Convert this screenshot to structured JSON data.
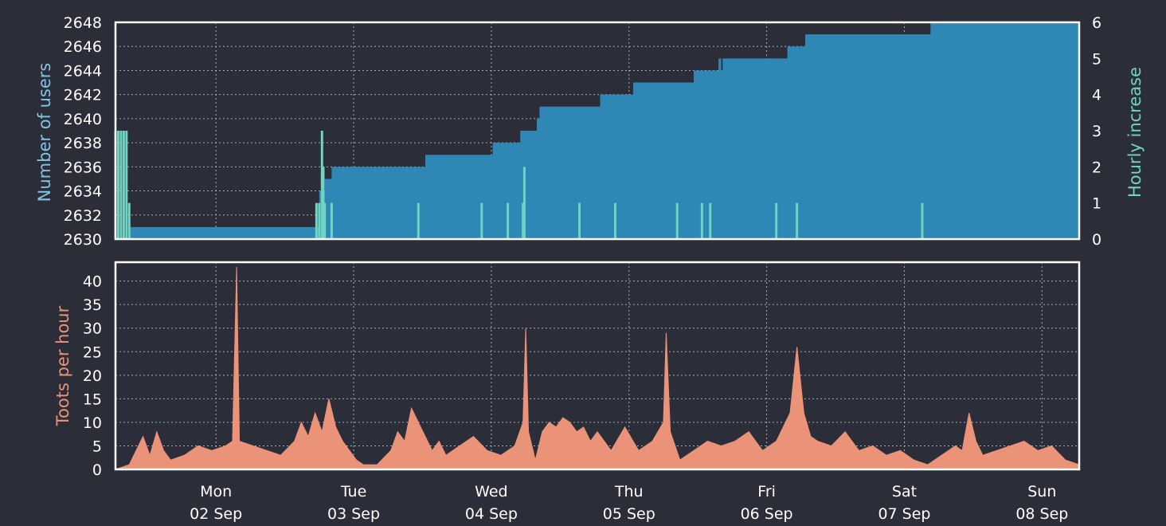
{
  "chart_data": [
    {
      "type": "area",
      "x_axis": "time",
      "xlim": [
        0,
        7.0
      ],
      "left_axis": {
        "label": "Number of users",
        "color": "#82c4e4",
        "ylim": [
          2630,
          2648
        ],
        "ticks": [
          "2630",
          "2632",
          "2634",
          "2636",
          "2638",
          "2640",
          "2642",
          "2644",
          "2646",
          "2648"
        ]
      },
      "right_axis": {
        "label": "Hourly increase",
        "color": "#71d3c2",
        "ylim": [
          0,
          6
        ],
        "ticks": [
          "0",
          "1",
          "2",
          "3",
          "4",
          "5",
          "6"
        ]
      },
      "series": [
        {
          "name": "Number of users",
          "color": "#2e87b4",
          "style": "step-area",
          "points": [
            [
              0,
              2630
            ],
            [
              0.1,
              2631
            ],
            [
              1.45,
              2631
            ],
            [
              1.48,
              2634
            ],
            [
              1.52,
              2635
            ],
            [
              1.57,
              2636
            ],
            [
              2.2,
              2636
            ],
            [
              2.25,
              2637
            ],
            [
              2.7,
              2637
            ],
            [
              2.74,
              2638
            ],
            [
              2.9,
              2638
            ],
            [
              2.94,
              2639
            ],
            [
              3.02,
              2639
            ],
            [
              3.06,
              2640
            ],
            [
              3.08,
              2641
            ],
            [
              3.5,
              2641
            ],
            [
              3.52,
              2642
            ],
            [
              3.72,
              2642
            ],
            [
              3.76,
              2643
            ],
            [
              4.18,
              2643
            ],
            [
              4.2,
              2644
            ],
            [
              4.35,
              2644
            ],
            [
              4.38,
              2645
            ],
            [
              4.39,
              2645
            ],
            [
              4.4,
              2644
            ],
            [
              4.41,
              2645
            ],
            [
              4.43,
              2645
            ],
            [
              4.45,
              2645
            ],
            [
              4.86,
              2645
            ],
            [
              4.88,
              2646
            ],
            [
              4.99,
              2646
            ],
            [
              5.01,
              2647
            ],
            [
              5.9,
              2647
            ],
            [
              5.92,
              2648
            ],
            [
              7.0,
              2648
            ]
          ]
        },
        {
          "name": "Hourly increase",
          "color": "#71d3c2",
          "style": "spikes",
          "points": [
            [
              0,
              3
            ],
            [
              0.02,
              3
            ],
            [
              0.04,
              3
            ],
            [
              0.06,
              3
            ],
            [
              0.08,
              3
            ],
            [
              0.1,
              1
            ],
            [
              1.46,
              1
            ],
            [
              1.48,
              1
            ],
            [
              1.5,
              3
            ],
            [
              1.51,
              2
            ],
            [
              1.52,
              1
            ],
            [
              1.57,
              1
            ],
            [
              2.2,
              1
            ],
            [
              2.66,
              1
            ],
            [
              2.85,
              1
            ],
            [
              2.96,
              1
            ],
            [
              2.97,
              2
            ],
            [
              3.37,
              1
            ],
            [
              3.63,
              1
            ],
            [
              4.08,
              1
            ],
            [
              4.26,
              1
            ],
            [
              4.32,
              1
            ],
            [
              4.8,
              1
            ],
            [
              4.95,
              1
            ],
            [
              5.86,
              1
            ]
          ]
        }
      ]
    },
    {
      "type": "area",
      "x_axis": "time",
      "xlim": [
        0,
        7.0
      ],
      "ylabel": "Toots per hour",
      "ylabel_color": "#eb9378",
      "ylim": [
        0,
        44
      ],
      "yticks": [
        "0",
        "5",
        "10",
        "15",
        "20",
        "25",
        "30",
        "35",
        "40"
      ],
      "xticks": [
        {
          "day": "Mon",
          "date": "02 Sep",
          "x": 0.73
        },
        {
          "day": "Tue",
          "date": "03 Sep",
          "x": 1.73
        },
        {
          "day": "Wed",
          "date": "04 Sep",
          "x": 2.73
        },
        {
          "day": "Thu",
          "date": "05 Sep",
          "x": 3.73
        },
        {
          "day": "Fri",
          "date": "06 Sep",
          "x": 4.73
        },
        {
          "day": "Sat",
          "date": "07 Sep",
          "x": 5.73
        },
        {
          "day": "Sun",
          "date": "08 Sep",
          "x": 6.73
        }
      ],
      "series": [
        {
          "name": "Toots per hour",
          "color": "#eb9378",
          "style": "area",
          "points": [
            [
              0,
              0
            ],
            [
              0.1,
              1
            ],
            [
              0.15,
              4
            ],
            [
              0.2,
              7
            ],
            [
              0.25,
              3
            ],
            [
              0.3,
              8
            ],
            [
              0.35,
              4
            ],
            [
              0.4,
              2
            ],
            [
              0.5,
              3
            ],
            [
              0.6,
              5
            ],
            [
              0.7,
              4
            ],
            [
              0.8,
              5
            ],
            [
              0.85,
              6
            ],
            [
              0.88,
              43
            ],
            [
              0.9,
              6
            ],
            [
              1.0,
              5
            ],
            [
              1.1,
              4
            ],
            [
              1.2,
              3
            ],
            [
              1.3,
              6
            ],
            [
              1.35,
              10
            ],
            [
              1.4,
              7
            ],
            [
              1.45,
              12
            ],
            [
              1.5,
              8
            ],
            [
              1.55,
              15
            ],
            [
              1.6,
              9
            ],
            [
              1.65,
              6
            ],
            [
              1.7,
              4
            ],
            [
              1.75,
              2
            ],
            [
              1.8,
              1
            ],
            [
              1.9,
              1
            ],
            [
              2.0,
              4
            ],
            [
              2.05,
              8
            ],
            [
              2.1,
              6
            ],
            [
              2.15,
              13
            ],
            [
              2.2,
              10
            ],
            [
              2.25,
              7
            ],
            [
              2.3,
              4
            ],
            [
              2.35,
              6
            ],
            [
              2.4,
              3
            ],
            [
              2.5,
              5
            ],
            [
              2.6,
              7
            ],
            [
              2.7,
              4
            ],
            [
              2.8,
              3
            ],
            [
              2.9,
              5
            ],
            [
              2.96,
              10
            ],
            [
              2.98,
              30
            ],
            [
              3.0,
              8
            ],
            [
              3.05,
              2
            ],
            [
              3.1,
              8
            ],
            [
              3.15,
              10
            ],
            [
              3.2,
              9
            ],
            [
              3.25,
              11
            ],
            [
              3.3,
              10
            ],
            [
              3.35,
              8
            ],
            [
              3.4,
              9
            ],
            [
              3.45,
              6
            ],
            [
              3.5,
              8
            ],
            [
              3.6,
              4
            ],
            [
              3.7,
              9
            ],
            [
              3.8,
              4
            ],
            [
              3.9,
              6
            ],
            [
              3.98,
              10
            ],
            [
              4.0,
              29
            ],
            [
              4.03,
              8
            ],
            [
              4.1,
              2
            ],
            [
              4.2,
              4
            ],
            [
              4.3,
              6
            ],
            [
              4.4,
              5
            ],
            [
              4.5,
              6
            ],
            [
              4.6,
              8
            ],
            [
              4.7,
              4
            ],
            [
              4.8,
              6
            ],
            [
              4.9,
              12
            ],
            [
              4.95,
              26
            ],
            [
              5.0,
              12
            ],
            [
              5.05,
              7
            ],
            [
              5.1,
              6
            ],
            [
              5.2,
              5
            ],
            [
              5.3,
              8
            ],
            [
              5.4,
              4
            ],
            [
              5.5,
              5
            ],
            [
              5.6,
              3
            ],
            [
              5.7,
              4
            ],
            [
              5.8,
              2
            ],
            [
              5.9,
              1
            ],
            [
              6.0,
              3
            ],
            [
              6.1,
              5
            ],
            [
              6.15,
              4
            ],
            [
              6.2,
              12
            ],
            [
              6.25,
              6
            ],
            [
              6.3,
              3
            ],
            [
              6.4,
              4
            ],
            [
              6.5,
              5
            ],
            [
              6.6,
              6
            ],
            [
              6.7,
              4
            ],
            [
              6.8,
              5
            ],
            [
              6.9,
              2
            ],
            [
              7.0,
              1
            ]
          ]
        }
      ]
    }
  ]
}
